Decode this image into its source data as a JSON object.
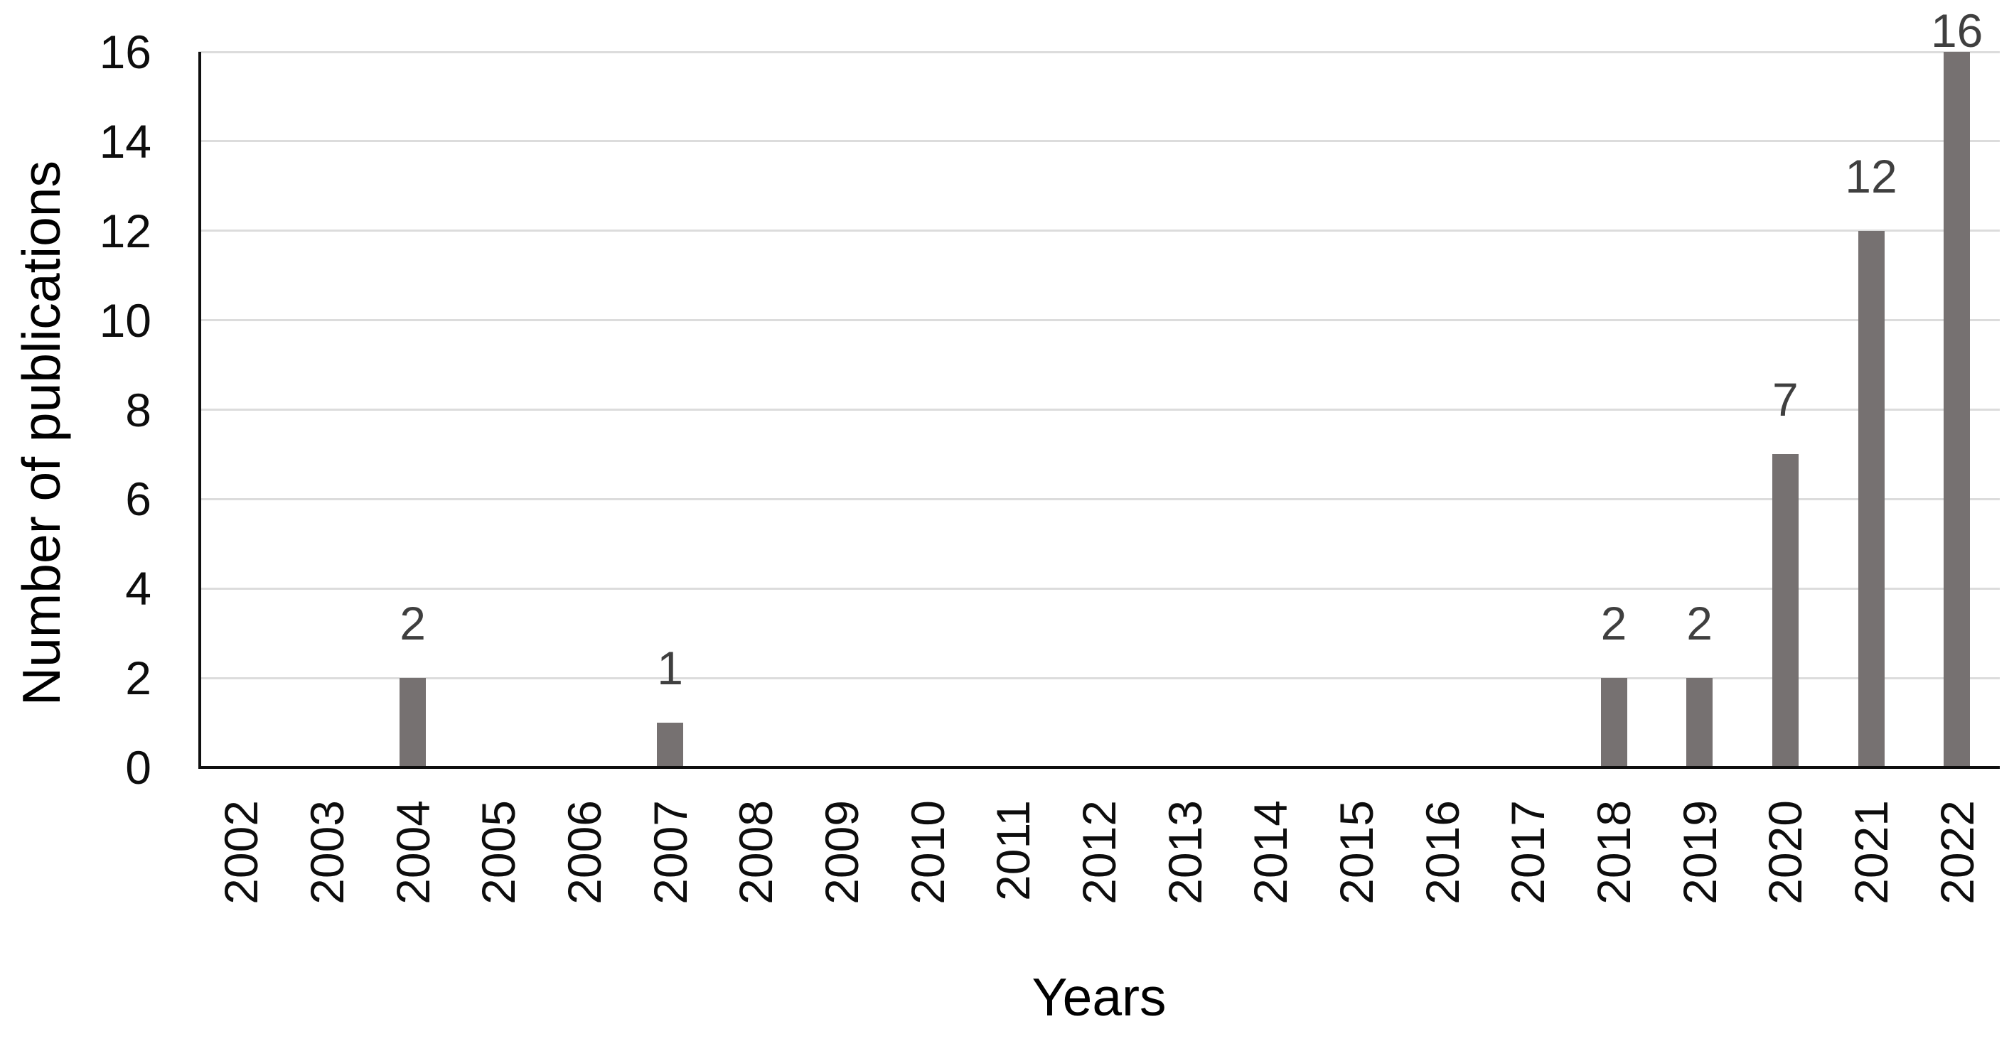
{
  "chart_data": {
    "type": "bar",
    "title": "",
    "categories": [
      "2002",
      "2003",
      "2004",
      "2005",
      "2006",
      "2007",
      "2008",
      "2009",
      "2010",
      "2011",
      "2012",
      "2013",
      "2014",
      "2015",
      "2016",
      "2017",
      "2018",
      "2019",
      "2020",
      "2021",
      "2022"
    ],
    "values": [
      0,
      0,
      2,
      0,
      0,
      1,
      0,
      0,
      0,
      0,
      0,
      0,
      0,
      0,
      0,
      0,
      2,
      2,
      7,
      12,
      16
    ],
    "data_labels_shown": [
      "2",
      "1",
      "2",
      "2",
      "7",
      "12",
      "16"
    ],
    "show_data_labels_for_nonzero": true,
    "xlabel": "Years",
    "ylabel": "Number of publications",
    "ylim": [
      0,
      16
    ],
    "yticks": [
      0,
      2,
      4,
      6,
      8,
      10,
      12,
      14,
      16
    ],
    "grid": "horizontal",
    "legend": "none",
    "colors": {
      "bar_fill": "#767171",
      "gridline": "#dcdcdc",
      "axis_line": "#0f0f0f",
      "tick_label": "#0d0d0d",
      "data_label": "#3f3f3f",
      "axis_title": "#000000",
      "background": "#ffffff"
    }
  }
}
